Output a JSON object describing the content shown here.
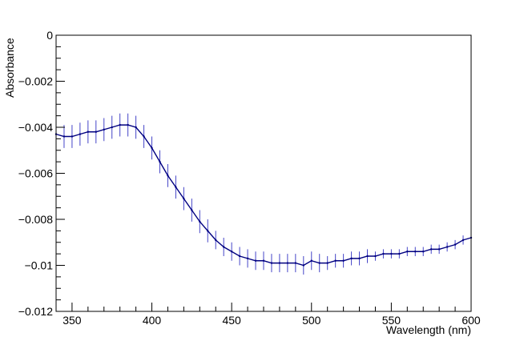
{
  "chart_data": {
    "type": "line",
    "title": "",
    "xlabel": "Wavelength (nm)",
    "ylabel": "Absorbance",
    "xlim": [
      340,
      600
    ],
    "ylim": [
      -0.012,
      0
    ],
    "x_ticks": [
      350,
      400,
      450,
      500,
      550,
      600
    ],
    "x_tick_labels": [
      "350",
      "400",
      "450",
      "500",
      "550",
      "600"
    ],
    "y_ticks": [
      0,
      -0.002,
      -0.004,
      -0.006,
      -0.008,
      -0.01,
      -0.012
    ],
    "y_tick_labels": [
      "0",
      "−0.002",
      "−0.004",
      "−0.006",
      "−0.008",
      "−0.01",
      "−0.012"
    ],
    "grid": false,
    "legend": "none",
    "colors": {
      "line": "#000080",
      "error_bars": "#4545c8",
      "axes": "#000000"
    },
    "series": [
      {
        "x": [
          340,
          345,
          350,
          355,
          360,
          365,
          370,
          375,
          380,
          385,
          390,
          395,
          400,
          405,
          410,
          415,
          420,
          425,
          430,
          435,
          440,
          445,
          450,
          455,
          460,
          465,
          470,
          475,
          480,
          485,
          490,
          495,
          500,
          505,
          510,
          515,
          520,
          525,
          530,
          535,
          540,
          545,
          550,
          555,
          560,
          565,
          570,
          575,
          580,
          585,
          590,
          595,
          600
        ],
        "y": [
          -0.0043,
          -0.0044,
          -0.0044,
          -0.0043,
          -0.0042,
          -0.0042,
          -0.0041,
          -0.004,
          -0.0039,
          -0.0039,
          -0.004,
          -0.0044,
          -0.0049,
          -0.0055,
          -0.0061,
          -0.0066,
          -0.0071,
          -0.0076,
          -0.0081,
          -0.0085,
          -0.0089,
          -0.0092,
          -0.0094,
          -0.0096,
          -0.0097,
          -0.0098,
          -0.0098,
          -0.0099,
          -0.0099,
          -0.0099,
          -0.0099,
          -0.01,
          -0.0098,
          -0.0099,
          -0.0099,
          -0.0098,
          -0.0098,
          -0.0097,
          -0.0097,
          -0.0096,
          -0.0096,
          -0.0095,
          -0.0095,
          -0.0095,
          -0.0094,
          -0.0094,
          -0.0094,
          -0.0093,
          -0.0093,
          -0.0092,
          -0.0091,
          -0.0089,
          -0.0088
        ],
        "error": [
          0.0005,
          0.0005,
          0.0005,
          0.0005,
          0.0005,
          0.0005,
          0.0005,
          0.0005,
          0.0005,
          0.0005,
          0.0005,
          0.0005,
          0.0005,
          0.0005,
          0.0005,
          0.0005,
          0.0005,
          0.0005,
          0.0005,
          0.0005,
          0.0004,
          0.0004,
          0.0004,
          0.0004,
          0.0004,
          0.0004,
          0.0004,
          0.0004,
          0.0004,
          0.0004,
          0.0004,
          0.0004,
          0.0004,
          0.0004,
          0.0003,
          0.0003,
          0.0003,
          0.0003,
          0.0003,
          0.0003,
          0.0002,
          0.0002,
          0.0002,
          0.0002,
          0.0002,
          0.0002,
          0.0002,
          0.0002,
          0.0002,
          0.0002,
          0.0002,
          0.0002,
          0.0002
        ]
      }
    ]
  }
}
